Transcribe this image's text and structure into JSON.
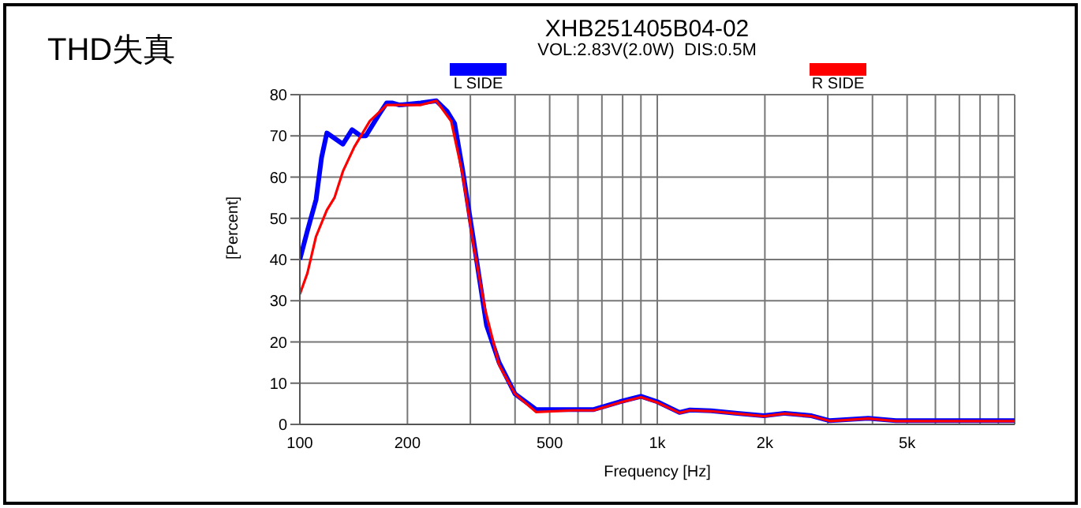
{
  "chart_data": {
    "type": "line",
    "title": "THD失真",
    "subtitle": "XHB251405B04-02",
    "annotations": [
      "VOL:2.83V(2.0W)  DIS:0.5M"
    ],
    "xlabel": "Frequency [Hz]",
    "ylabel": "[Percent]",
    "log": "x",
    "grid": true,
    "legend": "top",
    "marker": "none",
    "line_style": "solid",
    "xlim": [
      100,
      10000
    ],
    "ylim": [
      0,
      80
    ],
    "xticks": [
      100,
      200,
      {
        "value": 300,
        "label": null
      },
      {
        "value": 400,
        "label": null
      },
      500,
      {
        "value": 600,
        "label": null
      },
      {
        "value": 700,
        "label": null
      },
      {
        "value": 800,
        "label": null
      },
      {
        "value": 900,
        "label": null
      },
      {
        "value": 1000,
        "label": "1k"
      },
      {
        "value": 2000,
        "label": "2k"
      },
      {
        "value": 3000,
        "label": null
      },
      {
        "value": 4000,
        "label": null
      },
      {
        "value": 5000,
        "label": "5k"
      },
      {
        "value": 6000,
        "label": null
      },
      {
        "value": 7000,
        "label": null
      },
      {
        "value": 8000,
        "label": null
      },
      {
        "value": 9000,
        "label": null
      }
    ],
    "yticks": [
      0,
      10,
      20,
      30,
      40,
      50,
      60,
      70,
      80
    ],
    "series": [
      {
        "name": "L SIDE",
        "color": "#0000ff",
        "x": [
          100,
          105,
          111,
          115,
          119,
          132,
          140,
          148,
          153,
          166,
          175,
          181,
          190,
          218,
          241,
          258,
          271,
          285,
          305,
          333,
          361,
          400,
          458,
          580,
          664,
          786,
          900,
          1000,
          1154,
          1235,
          1415,
          1674,
          1987,
          2276,
          2700,
          3040,
          3890,
          4650,
          6500,
          10000
        ],
        "values": [
          40,
          47,
          54.5,
          64.7,
          70.7,
          68,
          71.5,
          70,
          70,
          75,
          78,
          78,
          77.5,
          78,
          78.5,
          76,
          73,
          62,
          45.6,
          24,
          15,
          7.4,
          3.6,
          3.6,
          3.6,
          5.5,
          6.8,
          5.5,
          2.9,
          3.5,
          3.3,
          2.7,
          2.1,
          2.7,
          2.1,
          0.9,
          1.5,
          0.9,
          0.9,
          0.9
        ]
      },
      {
        "name": "R SIDE",
        "color": "#ff0000",
        "x": [
          100,
          105,
          111,
          119,
          125,
          132,
          142,
          157,
          175,
          195,
          218,
          241,
          265,
          285,
          305,
          330,
          361,
          400,
          458,
          580,
          664,
          786,
          900,
          1000,
          1154,
          1235,
          1415,
          1674,
          1987,
          2276,
          2700,
          3040,
          3890,
          4650,
          6500,
          10000
        ],
        "values": [
          31.6,
          36.7,
          45.6,
          52,
          55,
          61.4,
          67.3,
          73.6,
          77.5,
          77.5,
          77.5,
          78.5,
          73.6,
          60.9,
          44.3,
          27.8,
          14.4,
          7.4,
          3,
          3.4,
          3.4,
          5.3,
          6.6,
          5.3,
          2.8,
          3.4,
          3.2,
          2.6,
          2,
          2.6,
          2,
          0.8,
          1.4,
          0.8,
          0.8,
          0.8
        ]
      }
    ]
  }
}
